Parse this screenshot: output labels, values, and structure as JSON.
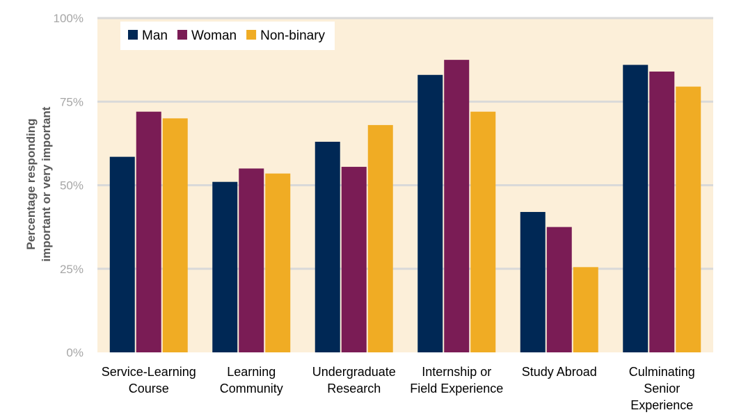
{
  "chart_data": {
    "type": "bar",
    "ylabel_lines": [
      "Percentage responding",
      "important or very important"
    ],
    "ylim": [
      0,
      100
    ],
    "yticks": [
      0,
      25,
      50,
      75,
      100
    ],
    "ytick_labels": [
      "0%",
      "25%",
      "50%",
      "75%",
      "100%"
    ],
    "categories": [
      [
        "Service-Learning",
        "Course"
      ],
      [
        "Learning",
        "Community"
      ],
      [
        "Undergraduate",
        "Research"
      ],
      [
        "Internship or",
        "Field Experience"
      ],
      [
        "Study Abroad"
      ],
      [
        "Culminating",
        "Senior",
        "Experience"
      ]
    ],
    "series": [
      {
        "name": "Man",
        "values": [
          58.5,
          51,
          63,
          83,
          42,
          86
        ]
      },
      {
        "name": "Woman",
        "values": [
          72,
          55,
          55.5,
          87.5,
          37.5,
          84
        ]
      },
      {
        "name": "Non-binary",
        "values": [
          70,
          53.5,
          68,
          72,
          25.5,
          79.5
        ]
      }
    ],
    "colors": [
      "#002855",
      "#7a1c55",
      "#f0ac24"
    ],
    "plot_background": "#fcefd9",
    "grid": true,
    "legend_position": "top-left"
  }
}
